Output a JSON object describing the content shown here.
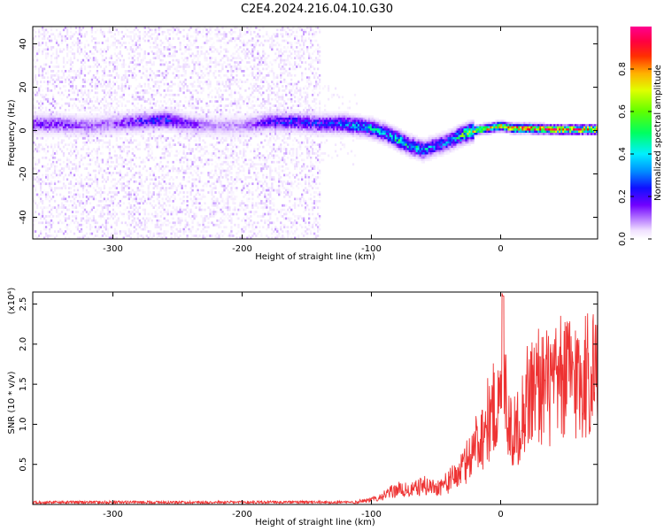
{
  "title": "C2E4.2024.216.04.10.G30",
  "chart_data": [
    {
      "type": "heatmap",
      "xlabel": "Height of straight line (km)",
      "ylabel": "Frequency (Hz)",
      "xlim": [
        -362,
        75
      ],
      "ylim": [
        -50,
        48
      ],
      "xticks": [
        -300,
        -200,
        -100,
        0
      ],
      "yticks": [
        -40,
        -20,
        0,
        20,
        40
      ],
      "colorbar": {
        "label": "Normalized spectral amplitude",
        "range": [
          0.0,
          1.0
        ],
        "ticks": [
          0.0,
          0.2,
          0.4,
          0.6,
          0.8
        ],
        "colormap": [
          "#ffffff",
          "#f2e6ff",
          "#d8b8ff",
          "#a866ff",
          "#7a00ff",
          "#2000ff",
          "#0080ff",
          "#00ffe0",
          "#00ff40",
          "#a0ff00",
          "#ffff00",
          "#ff8000",
          "#ff0000",
          "#ff0080"
        ]
      },
      "ridge": {
        "x": [
          -360,
          -340,
          -320,
          -300,
          -280,
          -260,
          -240,
          -220,
          -200,
          -180,
          -160,
          -140,
          -120,
          -110,
          -100,
          -90,
          -80,
          -70,
          -60,
          -50,
          -40,
          -30,
          -20,
          -10,
          0,
          10,
          20,
          40,
          60,
          75
        ],
        "frequency": [
          3,
          3,
          2,
          3,
          4,
          5,
          3,
          2,
          2,
          4,
          4,
          3,
          3,
          2,
          1,
          -1,
          -4,
          -7,
          -9,
          -7,
          -5,
          -2,
          0,
          1,
          2,
          1,
          1,
          0.5,
          0.5,
          0.5
        ],
        "amplitude": [
          0.3,
          0.3,
          0.25,
          0.25,
          0.35,
          0.4,
          0.3,
          0.2,
          0.2,
          0.35,
          0.4,
          0.4,
          0.45,
          0.5,
          0.5,
          0.5,
          0.55,
          0.55,
          0.5,
          0.45,
          0.45,
          0.6,
          0.75,
          0.8,
          0.8,
          0.85,
          0.9,
          0.9,
          0.9,
          0.9
        ]
      },
      "noise_extent_x": -140
    },
    {
      "type": "line",
      "xlabel": "Height of straight line (km)",
      "ylabel": "SNR (10 * v/v)",
      "y_multiplier": "(x10⁴)",
      "color": "#ee3333",
      "xlim": [
        -362,
        75
      ],
      "ylim": [
        0,
        2.65
      ],
      "xticks": [
        -300,
        -200,
        -100,
        0
      ],
      "yticks": [
        0.5,
        1.0,
        1.5,
        2.0,
        2.5
      ],
      "series": [
        {
          "x": [
            -362,
            -300,
            -200,
            -150,
            -120,
            -100,
            -90,
            -80,
            -70,
            -60,
            -50,
            -40,
            -30,
            -25,
            -20,
            -15,
            -10,
            -5,
            0,
            2,
            5,
            10,
            15,
            20,
            30,
            40,
            50,
            60,
            70,
            75
          ],
          "y": [
            0.03,
            0.03,
            0.02,
            0.02,
            0.03,
            0.06,
            0.12,
            0.2,
            0.18,
            0.25,
            0.22,
            0.3,
            0.45,
            0.6,
            0.8,
            0.9,
            1.1,
            1.25,
            1.3,
            2.6,
            1.2,
            0.9,
            1.1,
            1.4,
            1.6,
            1.5,
            1.7,
            1.65,
            1.75,
            1.8
          ]
        }
      ]
    }
  ]
}
